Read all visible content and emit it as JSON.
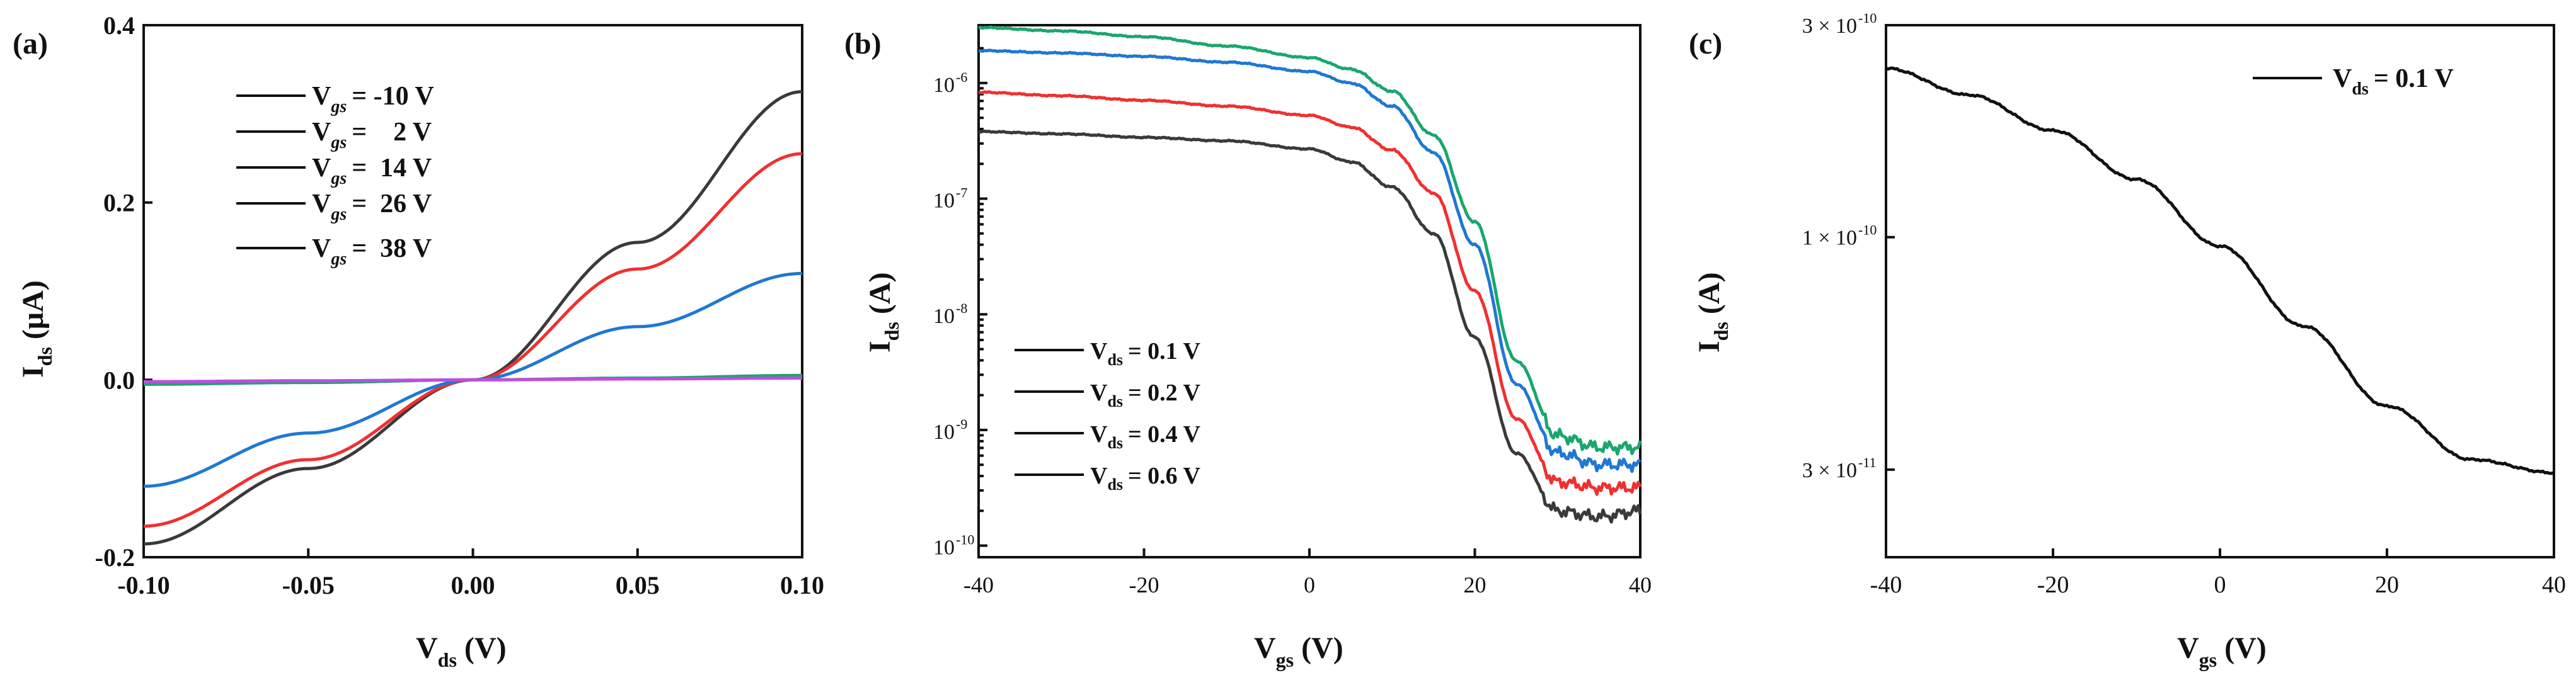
{
  "colors": {
    "black": "#3a3a3a",
    "red": "#f03030",
    "blue": "#1f78d2",
    "green": "#1aa66e",
    "purple": "#c04de0",
    "ink": "#111111"
  },
  "chart_data": [
    {
      "type": "line",
      "panel_label": "(a)",
      "xlabel": "V",
      "xlabel_sub": "ds",
      "xlabel_unit": " (V)",
      "ylabel": "I",
      "ylabel_sub": "ds",
      "ylabel_unit": " (μA)",
      "xlim": [
        -0.1,
        0.1
      ],
      "ylim": [
        -0.2,
        0.4
      ],
      "x_ticks": [
        "-0.10",
        "-0.05",
        "0.00",
        "0.05",
        "0.10"
      ],
      "y_ticks": [
        "-0.2",
        "0.0",
        "0.2",
        "0.4"
      ],
      "y_tick_values": [
        -0.2,
        0.0,
        0.2,
        0.4
      ],
      "x_tick_values": [
        -0.1,
        -0.05,
        0.0,
        0.05,
        0.1
      ],
      "series": [
        {
          "name": "V",
          "sub": "gs",
          "legend_value": "= -10 V",
          "color": "black",
          "x": [
            -0.1,
            -0.05,
            0,
            0.05,
            0.1
          ],
          "values": [
            -0.185,
            -0.1,
            0.0,
            0.155,
            0.325
          ]
        },
        {
          "name": "V",
          "sub": "gs",
          "legend_value": "=    2 V",
          "color": "red",
          "x": [
            -0.1,
            -0.05,
            0,
            0.05,
            0.1
          ],
          "values": [
            -0.165,
            -0.09,
            0.0,
            0.125,
            0.255
          ]
        },
        {
          "name": "V",
          "sub": "gs",
          "legend_value": "=  14 V",
          "color": "blue",
          "x": [
            -0.1,
            -0.05,
            0,
            0.05,
            0.1
          ],
          "values": [
            -0.12,
            -0.06,
            0.0,
            0.06,
            0.12
          ]
        },
        {
          "name": "V",
          "sub": "gs",
          "legend_value": "=  26 V",
          "color": "green",
          "x": [
            -0.1,
            -0.05,
            0,
            0.05,
            0.1
          ],
          "values": [
            -0.005,
            -0.003,
            0.0,
            0.002,
            0.005
          ]
        },
        {
          "name": "V",
          "sub": "gs",
          "legend_value": "=  38 V",
          "color": "purple",
          "x": [
            -0.1,
            -0.05,
            0,
            0.05,
            0.1
          ],
          "values": [
            -0.002,
            -0.001,
            0.0,
            0.001,
            0.002
          ]
        }
      ]
    },
    {
      "type": "line",
      "panel_label": "(b)",
      "yscale": "log",
      "xlabel": "V",
      "xlabel_sub": "gs",
      "xlabel_unit": " (V)",
      "ylabel": "I",
      "ylabel_sub": "ds",
      "ylabel_unit": " (A)",
      "xlim": [
        -40,
        40
      ],
      "ylim_log10": [
        -10.1,
        -5.5
      ],
      "x_ticks": [
        "-40",
        "-20",
        "0",
        "20",
        "40"
      ],
      "x_tick_values": [
        -40,
        -20,
        0,
        20,
        40
      ],
      "y_ticks": [
        "10",
        "10",
        "10",
        "10",
        "10"
      ],
      "y_tick_exponents": [
        "-10",
        "-9",
        "-8",
        "-7",
        "-6"
      ],
      "y_tick_values": [
        -10,
        -9,
        -8,
        -7,
        -6
      ],
      "series": [
        {
          "name": "V",
          "sub": "ds",
          "legend_value": "= 0.1 V",
          "color": "black",
          "x": [
            -40,
            -30,
            -20,
            -10,
            0,
            5,
            10,
            15,
            20,
            25,
            30,
            35,
            40
          ],
          "log10_values": [
            -6.42,
            -6.44,
            -6.47,
            -6.5,
            -6.57,
            -6.68,
            -6.9,
            -7.3,
            -8.2,
            -9.2,
            -9.7,
            -9.75,
            -9.7
          ]
        },
        {
          "name": "V",
          "sub": "ds",
          "legend_value": "= 0.2 V",
          "color": "red",
          "x": [
            -40,
            -30,
            -20,
            -10,
            0,
            5,
            10,
            15,
            20,
            25,
            30,
            35,
            40
          ],
          "log10_values": [
            -6.08,
            -6.11,
            -6.15,
            -6.2,
            -6.28,
            -6.38,
            -6.58,
            -6.95,
            -7.8,
            -8.9,
            -9.45,
            -9.5,
            -9.5
          ]
        },
        {
          "name": "V",
          "sub": "ds",
          "legend_value": "= 0.4 V",
          "color": "blue",
          "x": [
            -40,
            -30,
            -20,
            -10,
            0,
            5,
            10,
            15,
            20,
            25,
            30,
            35,
            40
          ],
          "log10_values": [
            -5.72,
            -5.74,
            -5.77,
            -5.82,
            -5.9,
            -6.0,
            -6.2,
            -6.6,
            -7.4,
            -8.6,
            -9.2,
            -9.3,
            -9.3
          ]
        },
        {
          "name": "V",
          "sub": "ds",
          "legend_value": "= 0.6 V",
          "color": "green",
          "x": [
            -40,
            -30,
            -20,
            -10,
            0,
            5,
            10,
            15,
            20,
            25,
            30,
            35,
            40
          ],
          "log10_values": [
            -5.52,
            -5.55,
            -5.6,
            -5.68,
            -5.78,
            -5.88,
            -6.07,
            -6.45,
            -7.2,
            -8.4,
            -9.05,
            -9.15,
            -9.15
          ]
        }
      ]
    },
    {
      "type": "line",
      "panel_label": "(c)",
      "yscale": "log",
      "xlabel": "V",
      "xlabel_sub": "gs",
      "xlabel_unit": " (V)",
      "ylabel": "I",
      "ylabel_sub": "ds",
      "ylabel_unit": " (A)",
      "xlim": [
        -40,
        40
      ],
      "ylim_log10": [
        -10.72,
        -9.523
      ],
      "x_ticks": [
        "-40",
        "-20",
        "0",
        "20",
        "40"
      ],
      "x_tick_values": [
        -40,
        -20,
        0,
        20,
        40
      ],
      "y_ticks": [
        "3 × 10",
        "1 × 10",
        "3 × 10"
      ],
      "y_tick_exponents": [
        "-10",
        "-10",
        "-11"
      ],
      "y_tick_values": [
        -9.523,
        -10.0,
        -10.523
      ],
      "series": [
        {
          "name": "V",
          "sub": "ds",
          "legend_value": "= 0.1 V",
          "color": "ink",
          "x": [
            -40,
            -30,
            -20,
            -10,
            0,
            10,
            20,
            30,
            40
          ],
          "log10_values": [
            -9.62,
            -9.68,
            -9.76,
            -9.87,
            -10.02,
            -10.2,
            -10.38,
            -10.5,
            -10.53
          ]
        }
      ]
    }
  ]
}
